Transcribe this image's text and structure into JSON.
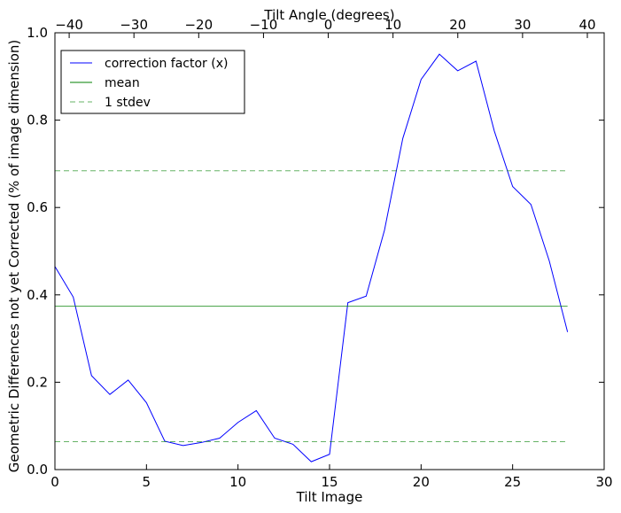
{
  "chart_data": {
    "type": "line",
    "xlabel": "Tilt Image",
    "ylabel": "Geometric Differences not yet Corrected (% of image dimension)",
    "top_xlabel": "Tilt Angle (degrees)",
    "xlim": [
      0,
      30
    ],
    "ylim": [
      0,
      1.0
    ],
    "top_xlim": [
      -42.2,
      42.6
    ],
    "x_ticks": [
      0,
      5,
      10,
      15,
      20,
      25,
      30
    ],
    "x_tick_labels": [
      "0",
      "5",
      "10",
      "15",
      "20",
      "25",
      "30"
    ],
    "y_ticks": [
      0.0,
      0.2,
      0.4,
      0.6,
      0.8,
      1.0
    ],
    "y_tick_labels": [
      "0.0",
      "0.2",
      "0.4",
      "0.6",
      "0.8",
      "1.0"
    ],
    "top_ticks": [
      -40,
      -30,
      -20,
      -10,
      0,
      10,
      20,
      30,
      40
    ],
    "top_tick_labels": [
      "−40",
      "−30",
      "−20",
      "−10",
      "0",
      "10",
      "20",
      "30",
      "40"
    ],
    "grid": false,
    "legend_position": "top-left",
    "series": [
      {
        "name": "correction factor (x)",
        "color": "#0000ff",
        "style": "solid",
        "x": [
          0,
          1,
          2,
          3,
          4,
          5,
          6,
          7,
          8,
          9,
          10,
          11,
          12,
          13,
          14,
          15,
          16,
          17,
          18,
          19,
          20,
          21,
          22,
          23,
          24,
          25,
          26,
          27,
          28
        ],
        "y": [
          0.465,
          0.395,
          0.215,
          0.172,
          0.205,
          0.153,
          0.065,
          0.055,
          0.062,
          0.072,
          0.108,
          0.135,
          0.072,
          0.058,
          0.018,
          0.035,
          0.382,
          0.397,
          0.548,
          0.758,
          0.893,
          0.951,
          0.913,
          0.935,
          0.775,
          0.648,
          0.607,
          0.478,
          0.315
        ]
      },
      {
        "name": "mean",
        "color": "#008000",
        "style": "solid",
        "x": [
          0,
          28
        ],
        "y": [
          0.374,
          0.374
        ]
      },
      {
        "name": "1 stdev",
        "color": "#008000",
        "style": "dashed",
        "x": [
          0,
          28
        ],
        "y": [
          0.684,
          0.684
        ]
      },
      {
        "name": "",
        "color": "#008000",
        "style": "dashed",
        "x": [
          0,
          28
        ],
        "y": [
          0.064,
          0.064
        ]
      }
    ],
    "legend": [
      "correction factor (x)",
      "mean",
      "1 stdev"
    ]
  }
}
